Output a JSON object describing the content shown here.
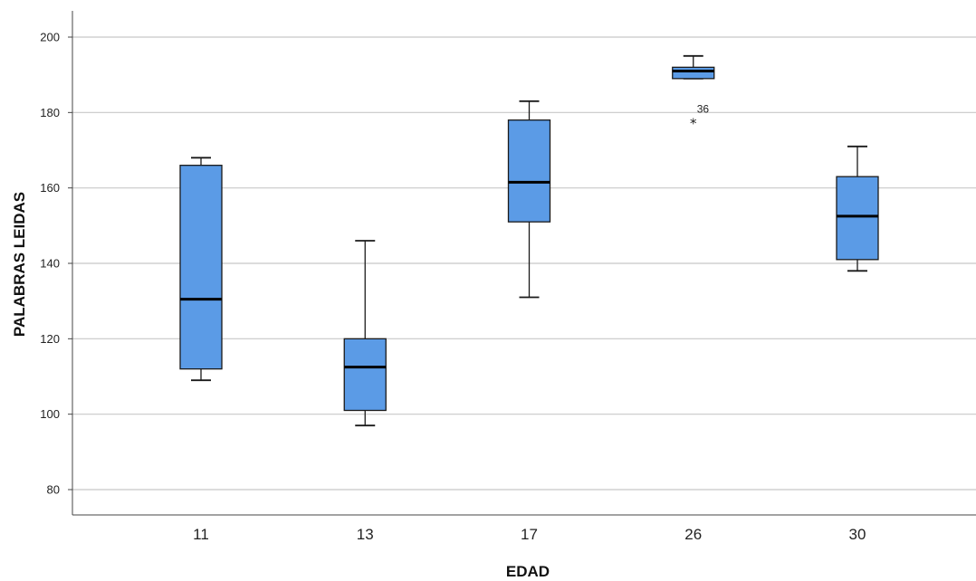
{
  "chart_data": {
    "type": "boxplot",
    "xlabel": "EDAD",
    "ylabel": "PALABRAS LEIDAS",
    "ylim": [
      73,
      207
    ],
    "y_ticks": [
      80,
      100,
      120,
      140,
      160,
      180,
      200
    ],
    "grid": "horizontal",
    "box_color": "#5b9be6",
    "categories": [
      "11",
      "13",
      "17",
      "26",
      "30"
    ],
    "boxes": [
      {
        "category": "11",
        "min": 109,
        "q1": 112,
        "median": 130.5,
        "q3": 166,
        "max": 168
      },
      {
        "category": "13",
        "min": 97,
        "q1": 101,
        "median": 112.5,
        "q3": 120,
        "max": 146
      },
      {
        "category": "17",
        "min": 131,
        "q1": 151,
        "median": 161.5,
        "q3": 178,
        "max": 183
      },
      {
        "category": "26",
        "min": 189,
        "q1": 189,
        "median": 191,
        "q3": 192,
        "max": 195
      },
      {
        "category": "30",
        "min": 138,
        "q1": 141,
        "median": 152.5,
        "q3": 163,
        "max": 171
      }
    ],
    "outliers": [
      {
        "category": "26",
        "value": 178,
        "label": "36",
        "marker": "*"
      }
    ]
  }
}
